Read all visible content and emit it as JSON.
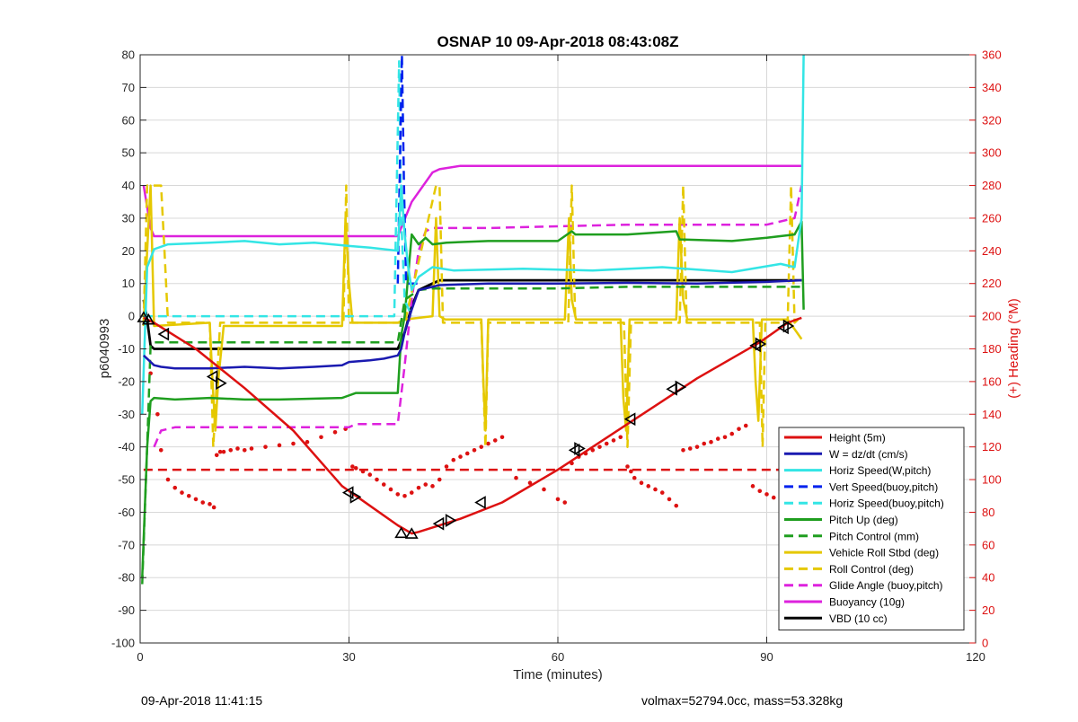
{
  "chart_data": {
    "type": "line",
    "title": "OSNAP 10 09-Apr-2018 08:43:08Z",
    "xlabel": "Time (minutes)",
    "ylabel_left": "p6040993",
    "ylabel_right": "(+) Heading (°M)",
    "xlim": [
      0,
      120
    ],
    "ylim_left": [
      -100,
      80
    ],
    "ylim_right": [
      0,
      360
    ],
    "xticks": [
      0,
      30,
      60,
      90,
      120
    ],
    "yticks_left": [
      -100,
      -90,
      -80,
      -70,
      -60,
      -50,
      -40,
      -30,
      -20,
      -10,
      0,
      10,
      20,
      30,
      40,
      50,
      60,
      70,
      80
    ],
    "yticks_right": [
      0,
      20,
      40,
      60,
      80,
      100,
      120,
      140,
      160,
      180,
      200,
      220,
      240,
      260,
      280,
      300,
      320,
      340,
      360
    ],
    "grid": true,
    "legend_position": "lower-right",
    "colors": {
      "red": "#dd1111",
      "blue": "#1a1ab0",
      "cyan": "#33e5e5",
      "bright_blue": "#0022ee",
      "green": "#1f9e1f",
      "yellow": "#e5c800",
      "magenta": "#dd22dd",
      "black": "#000000"
    },
    "series": [
      {
        "name": "Height (5m)",
        "color": "#dd1111",
        "style": "solid",
        "width": 2.5,
        "x": [
          0.5,
          2,
          8,
          15,
          22,
          29,
          33,
          37,
          39,
          40,
          46,
          52,
          60,
          70,
          80,
          89,
          93,
          95
        ],
        "y": [
          -0.5,
          -2,
          -10,
          -22,
          -35,
          -52,
          -58,
          -64,
          -66.5,
          -66,
          -62,
          -57,
          -47,
          -33,
          -19,
          -8,
          -2,
          -0.5
        ]
      },
      {
        "name": "W = dz/dt (cm/s)",
        "color": "#1a1ab0",
        "style": "solid",
        "width": 2.5,
        "x": [
          0.5,
          1,
          2,
          3,
          5,
          10,
          15,
          20,
          25,
          29,
          30,
          33,
          35,
          37,
          37.5,
          38,
          39,
          40,
          43,
          50,
          60,
          70,
          80,
          90,
          95
        ],
        "y": [
          -12,
          -13,
          -15,
          -15.5,
          -16,
          -16,
          -15.5,
          -16,
          -15.5,
          -15,
          -14,
          -13.5,
          -13,
          -12,
          -10,
          -5,
          2,
          8,
          9.5,
          10,
          10,
          10.2,
          10,
          10.5,
          11
        ]
      },
      {
        "name": "Horiz Speed(W,pitch)",
        "color": "#33e5e5",
        "style": "solid",
        "width": 2.5,
        "x": [
          0.3,
          1,
          2,
          4,
          10,
          15,
          20,
          25,
          30,
          33,
          37,
          37.5,
          38,
          38.5,
          39,
          40,
          42,
          45,
          55,
          65,
          75,
          85,
          92,
          94,
          95,
          95.3
        ],
        "y": [
          -30,
          15,
          20.5,
          22,
          22.5,
          23,
          22,
          22.5,
          21.5,
          21,
          20,
          40,
          25,
          15,
          8,
          12,
          15,
          14,
          14.5,
          14,
          15,
          13.5,
          16,
          15,
          30,
          80
        ]
      },
      {
        "name": "Vert Speed(buoy,pitch)",
        "color": "#0022ee",
        "style": "dashed",
        "width": 2.5,
        "x": [
          37,
          37.6,
          37.6,
          37.9,
          38.2,
          40
        ],
        "y": [
          10,
          80,
          80,
          40,
          10,
          10
        ]
      },
      {
        "name": "Horiz Speed(buoy,pitch)",
        "color": "#33e5e5",
        "style": "dashed",
        "width": 2.5,
        "x": [
          0.5,
          10,
          20,
          30,
          36.5,
          37.2,
          37.5,
          38,
          39
        ],
        "y": [
          0,
          0,
          0,
          0,
          0,
          78,
          30,
          5,
          0
        ]
      },
      {
        "name": "Pitch Up (deg)",
        "color": "#1f9e1f",
        "style": "solid",
        "width": 2.5,
        "x": [
          0.3,
          1,
          1.5,
          2,
          5,
          10,
          15,
          20,
          29,
          31,
          35,
          37,
          37.5,
          38,
          39,
          40,
          41,
          42,
          44,
          50,
          60,
          62,
          62.5,
          70,
          77,
          77.5,
          85,
          90,
          94,
          95,
          95.3
        ],
        "y": [
          -80,
          -40,
          -26,
          -25,
          -25.5,
          -25,
          -25.5,
          -25.5,
          -25,
          -23.5,
          -23.5,
          -23.5,
          -6,
          0,
          25,
          22,
          24,
          22,
          22.5,
          23,
          23,
          26,
          25,
          25,
          26,
          23.5,
          23,
          24,
          25,
          29,
          2
        ]
      },
      {
        "name": "Pitch Control (mm)",
        "color": "#1f9e1f",
        "style": "dashed",
        "width": 2.5,
        "x": [
          0.3,
          1,
          1.5,
          2,
          10,
          20,
          30,
          37,
          38,
          40,
          42,
          45,
          50,
          60,
          70,
          80,
          90,
          95
        ],
        "y": [
          -82,
          -40,
          -9,
          -8,
          -8,
          -8,
          -8,
          -8,
          5,
          8,
          8.5,
          8.5,
          8.5,
          8.5,
          9,
          9,
          9,
          9
        ]
      },
      {
        "name": "Vehicle Roll Stbd (deg)",
        "color": "#e5c800",
        "style": "solid",
        "width": 2.5,
        "x": [
          0.5,
          1,
          1.5,
          2,
          10,
          10.4,
          10.8,
          11.2,
          12,
          20,
          29,
          29.2,
          29.5,
          30,
          30.5,
          37,
          38,
          42,
          42.5,
          43,
          43.8,
          49,
          49.3,
          49.6,
          50,
          61,
          61.6,
          62,
          62.6,
          69,
          69.4,
          69.8,
          70.3,
          77,
          77.5,
          78,
          78.6,
          88,
          88.4,
          88.8,
          89.3,
          93,
          95
        ],
        "y": [
          -3,
          20,
          40,
          -3,
          -2,
          -20,
          -35,
          -20,
          -3,
          -3,
          -3,
          10,
          30,
          10,
          -2,
          -2,
          -1,
          0,
          30,
          0,
          -1,
          -1,
          -20,
          -35,
          -1,
          -1,
          30,
          5,
          -1,
          -1,
          -25,
          -35,
          -1,
          -1,
          30,
          5,
          -1,
          -1,
          -20,
          -32,
          -1,
          -1,
          -7
        ]
      },
      {
        "name": "Roll Control (deg)",
        "color": "#e5c800",
        "style": "dashed",
        "width": 2.5,
        "x": [
          0.5,
          1,
          1.5,
          3,
          3.5,
          4,
          10,
          10.5,
          11,
          11.5,
          29.2,
          29.6,
          30,
          38,
          42.5,
          43,
          43.5,
          49,
          49.6,
          50,
          61.5,
          62,
          62.5,
          69.5,
          70,
          70.5,
          77.5,
          78,
          78.5,
          89,
          89.4,
          89.8,
          93,
          93.5,
          94,
          95
        ],
        "y": [
          -2,
          40,
          40,
          40,
          20,
          -2,
          -2,
          -40,
          -20,
          -2,
          -2,
          40,
          -2,
          -2,
          40,
          40,
          -2,
          -2,
          -40,
          -2,
          -2,
          40,
          -2,
          -2,
          -40,
          -2,
          -2,
          40,
          -2,
          -2,
          -40,
          -2,
          -2,
          40,
          -2,
          0
        ]
      },
      {
        "name": "Glide Angle (buoy,pitch)",
        "color": "#dd22dd",
        "style": "dashed",
        "width": 2.5,
        "x": [
          2,
          3,
          5,
          10,
          15,
          20,
          25,
          30,
          31,
          35,
          37,
          38,
          39,
          40,
          41,
          42,
          43,
          45,
          50,
          60,
          70,
          80,
          90,
          94,
          95
        ],
        "y": [
          -40,
          -35,
          -34,
          -34,
          -34,
          -34,
          -34,
          -34,
          -33,
          -33,
          -33,
          -15,
          5,
          20,
          26,
          27,
          27,
          27,
          27,
          27.5,
          28,
          28,
          28,
          30,
          40
        ]
      },
      {
        "name": "Buoyancy (10g)",
        "color": "#dd22dd",
        "style": "solid",
        "width": 2.5,
        "x": [
          0.5,
          1.5,
          2,
          10,
          20,
          30,
          37,
          39,
          42,
          43,
          46,
          50,
          60,
          70,
          80,
          90,
          94,
          95
        ],
        "y": [
          40,
          27,
          24.5,
          24.5,
          24.5,
          24.5,
          24.5,
          35,
          44,
          45,
          46,
          46,
          46,
          46,
          46,
          46,
          46,
          46
        ]
      },
      {
        "name": "VBD (10 cc)",
        "color": "#000000",
        "style": "solid",
        "width": 2.8,
        "x": [
          0.5,
          1,
          1.5,
          2,
          10,
          20,
          30,
          37,
          38,
          39,
          40,
          42,
          43,
          50,
          60,
          70,
          80,
          90,
          95
        ],
        "y": [
          5,
          -1,
          -9,
          -10,
          -10,
          -10,
          -10,
          -10,
          -5,
          3,
          8,
          10,
          11,
          11,
          11,
          11,
          11,
          11,
          11
        ]
      }
    ],
    "heading_dotted": {
      "name": "Heading",
      "axis": "right",
      "color": "#dd1111",
      "x": [
        1.5,
        2.5,
        3,
        4,
        5,
        6,
        7,
        8,
        9,
        10,
        10.6,
        11,
        11.5,
        12,
        13,
        14,
        15,
        16,
        18,
        20,
        22,
        24,
        26,
        28,
        29.5,
        30.5,
        31,
        32,
        33,
        34,
        35,
        36,
        37,
        38,
        39,
        40,
        41,
        42,
        43,
        44,
        45,
        46,
        47,
        48,
        49,
        50,
        51,
        52,
        54,
        56,
        58,
        60,
        61,
        62,
        63,
        64,
        65,
        66,
        67,
        68,
        69,
        70,
        70.5,
        71,
        72,
        73,
        74,
        75,
        76,
        77,
        78,
        79,
        80,
        81,
        82,
        83,
        84,
        85,
        86,
        87,
        88,
        89,
        90,
        91,
        92,
        93
      ],
      "y": [
        165,
        140,
        118,
        100,
        95,
        92,
        90,
        88,
        86,
        85,
        83,
        115,
        117,
        117,
        118,
        119,
        118,
        119,
        120,
        121,
        122,
        123,
        126,
        129,
        131,
        108,
        107,
        105,
        103,
        100,
        97,
        94,
        91,
        90,
        92,
        95,
        97,
        96,
        100,
        108,
        112,
        114,
        116,
        118,
        120,
        122,
        124,
        126,
        101,
        98,
        94,
        88,
        86,
        110,
        114,
        116,
        118,
        120,
        122,
        124,
        126,
        108,
        105,
        101,
        98,
        96,
        94,
        92,
        88,
        84,
        118,
        119,
        120,
        122,
        123,
        125,
        126,
        128,
        131,
        133,
        96,
        93,
        91,
        89,
        86,
        85
      ]
    },
    "heading_reference": {
      "name": "Heading target",
      "axis": "right",
      "color": "#dd1111",
      "style": "dashed",
      "y": 106,
      "x": [
        0.5,
        95
      ]
    },
    "markers": {
      "x": [
        0.5,
        1.2,
        3.5,
        10.5,
        11.5,
        30,
        30.8,
        37.5,
        39,
        43,
        44.5,
        49,
        62.5,
        63,
        70.5,
        76.5,
        77.5,
        88.5,
        89,
        92.5,
        93
      ],
      "y": [
        -0.5,
        -1.2,
        -5.5,
        -18.5,
        -20.5,
        -54,
        -55.3,
        -66.5,
        -66.7,
        -63.5,
        -62.5,
        -57,
        -41,
        -40.5,
        -31.5,
        -22.3,
        -21.7,
        -9,
        -8.5,
        -3.5,
        -3
      ],
      "shapes": [
        "up",
        "up",
        "left",
        "left",
        "right",
        "left",
        "right",
        "up",
        "up",
        "left",
        "right",
        "left",
        "left",
        "right",
        "left",
        "left",
        "right",
        "left",
        "right",
        "left",
        "right"
      ]
    }
  },
  "footer": {
    "timestamp": "09-Apr-2018 11:41:15",
    "info": "volmax=52794.0cc, mass=53.328kg"
  }
}
